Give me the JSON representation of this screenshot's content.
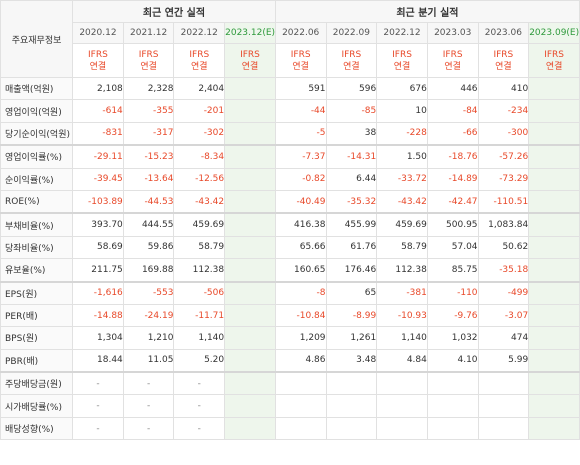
{
  "header": {
    "row_title": "주요재무정보",
    "annual_group": "최근 연간 실적",
    "quarter_group": "최근 분기 실적",
    "annual_periods": [
      "2020.12",
      "2021.12",
      "2022.12",
      "2023.12(E)"
    ],
    "quarter_periods": [
      "2022.06",
      "2022.09",
      "2022.12",
      "2023.03",
      "2023.06",
      "2023.09(E)"
    ],
    "standard_label": "IFRS",
    "basis_label": "연결"
  },
  "rows": [
    {
      "label": "매출액(억원)",
      "values": [
        "2,108",
        "2,328",
        "2,404",
        "",
        "591",
        "596",
        "676",
        "446",
        "410",
        ""
      ]
    },
    {
      "label": "영업이익(억원)",
      "values": [
        "-614",
        "-355",
        "-201",
        "",
        "-44",
        "-85",
        "10",
        "-84",
        "-234",
        ""
      ]
    },
    {
      "label": "당기순이익(억원)",
      "values": [
        "-831",
        "-317",
        "-302",
        "",
        "-5",
        "38",
        "-228",
        "-66",
        "-300",
        ""
      ]
    },
    {
      "label": "영업이익률(%)",
      "values": [
        "-29.11",
        "-15.23",
        "-8.34",
        "",
        "-7.37",
        "-14.31",
        "1.50",
        "-18.76",
        "-57.26",
        ""
      ]
    },
    {
      "label": "순이익률(%)",
      "values": [
        "-39.45",
        "-13.64",
        "-12.56",
        "",
        "-0.82",
        "6.44",
        "-33.72",
        "-14.89",
        "-73.29",
        ""
      ]
    },
    {
      "label": "ROE(%)",
      "values": [
        "-103.89",
        "-44.53",
        "-43.42",
        "",
        "-40.49",
        "-35.32",
        "-43.42",
        "-42.47",
        "-110.51",
        ""
      ]
    },
    {
      "label": "부채비율(%)",
      "values": [
        "393.70",
        "444.55",
        "459.69",
        "",
        "416.38",
        "455.99",
        "459.69",
        "500.95",
        "1,083.84",
        ""
      ]
    },
    {
      "label": "당좌비율(%)",
      "values": [
        "58.69",
        "59.86",
        "58.79",
        "",
        "65.66",
        "61.76",
        "58.79",
        "57.04",
        "50.62",
        ""
      ]
    },
    {
      "label": "유보율(%)",
      "values": [
        "211.75",
        "169.88",
        "112.38",
        "",
        "160.65",
        "176.46",
        "112.38",
        "85.75",
        "-35.18",
        ""
      ]
    },
    {
      "label": "EPS(원)",
      "values": [
        "-1,616",
        "-553",
        "-506",
        "",
        "-8",
        "65",
        "-381",
        "-110",
        "-499",
        ""
      ]
    },
    {
      "label": "PER(배)",
      "values": [
        "-14.88",
        "-24.19",
        "-11.71",
        "",
        "-10.84",
        "-8.99",
        "-10.93",
        "-9.76",
        "-3.07",
        ""
      ]
    },
    {
      "label": "BPS(원)",
      "values": [
        "1,304",
        "1,210",
        "1,140",
        "",
        "1,209",
        "1,261",
        "1,140",
        "1,032",
        "474",
        ""
      ]
    },
    {
      "label": "PBR(배)",
      "values": [
        "18.44",
        "11.05",
        "5.20",
        "",
        "4.86",
        "3.48",
        "4.84",
        "4.10",
        "5.99",
        ""
      ]
    },
    {
      "label": "주당배당금(원)",
      "values": [
        "-",
        "-",
        "-",
        "",
        "",
        "",
        "",
        "",
        "",
        ""
      ]
    },
    {
      "label": "시가배당률(%)",
      "values": [
        "-",
        "-",
        "-",
        "",
        "",
        "",
        "",
        "",
        "",
        ""
      ]
    },
    {
      "label": "배당성향(%)",
      "values": [
        "-",
        "-",
        "-",
        "",
        "",
        "",
        "",
        "",
        "",
        ""
      ]
    }
  ],
  "colors": {
    "negative": "#e8492a",
    "estimate_bg": "#eef6ec",
    "estimate_text": "#2f9a3c",
    "ifrs_text": "#e8492a"
  }
}
